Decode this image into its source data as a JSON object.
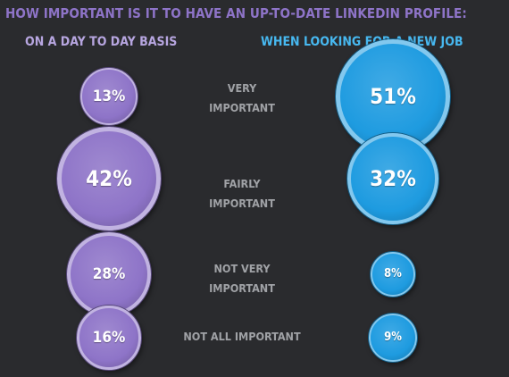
{
  "chart_data": {
    "type": "bubble",
    "title": "HOW IMPORTANT IS IT TO HAVE AN UP-TO-DATE LINKEDIN PROFILE:",
    "categories": [
      "VERY\nIMPORTANT",
      "FAIRLY\nIMPORTANT",
      "NOT VERY\nIMPORTANT",
      "NOT ALL IMPORTANT"
    ],
    "series": [
      {
        "name": "ON A DAY TO DAY BASIS",
        "values": [
          13,
          42,
          28,
          16
        ],
        "labels": [
          "13%",
          "42%",
          "28%",
          "16%"
        ],
        "color": "#8e74c8"
      },
      {
        "name": "WHEN LOOKING FOR A NEW JOB",
        "values": [
          51,
          32,
          8,
          9
        ],
        "labels": [
          "51%",
          "32%",
          "8%",
          "9%"
        ],
        "color": "#1e9be0"
      }
    ],
    "unit": "%"
  },
  "colors": {
    "background": "#2a2b2e",
    "title": "#8e74c8",
    "left_head": "#b7a6e0",
    "right_head": "#47b8f0",
    "category_text": "#a0a2a6"
  }
}
